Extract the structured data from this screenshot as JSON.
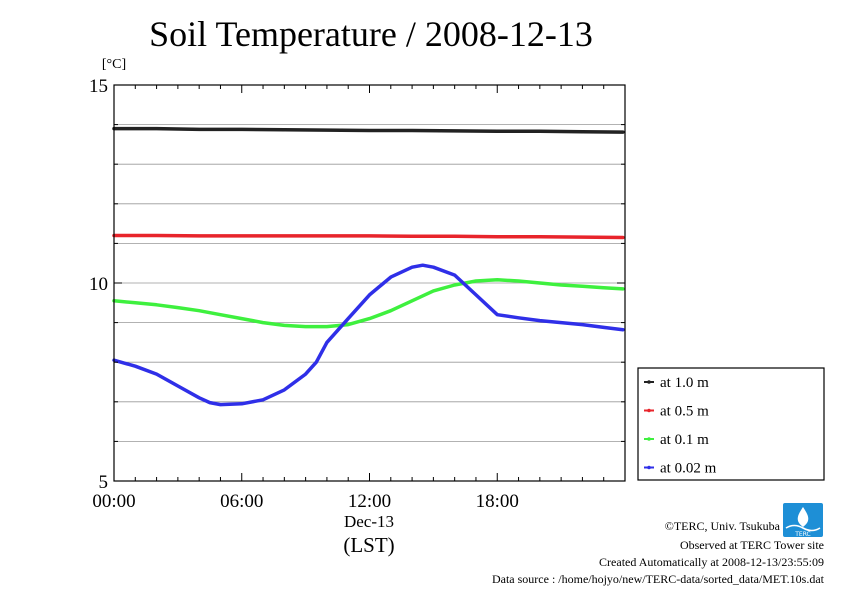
{
  "chart_data": {
    "type": "line",
    "title": "Soil Temperature / 2008-12-13",
    "ylabel": "[°C]",
    "ylim": [
      5,
      15
    ],
    "y_major_ticks": [
      5,
      10,
      15
    ],
    "y_minor_step": 1,
    "xlim": [
      0,
      24
    ],
    "x_ticks": [
      {
        "value": 0,
        "label": "00:00"
      },
      {
        "value": 6,
        "label": "06:00"
      },
      {
        "value": 12,
        "label": "12:00"
      },
      {
        "value": 18,
        "label": "18:00"
      }
    ],
    "x_sublabel": "Dec-13",
    "xlabel": "(LST)",
    "grid": true,
    "legend_position": "right",
    "series": [
      {
        "name": "at 1.0 m",
        "color": "#222222",
        "x": [
          0,
          2,
          4,
          6,
          8,
          10,
          12,
          14,
          16,
          18,
          20,
          22,
          23.9
        ],
        "y": [
          13.9,
          13.9,
          13.88,
          13.88,
          13.87,
          13.86,
          13.85,
          13.85,
          13.84,
          13.83,
          13.83,
          13.82,
          13.81
        ]
      },
      {
        "name": "at 0.5 m",
        "color": "#e8242b",
        "x": [
          0,
          2,
          4,
          6,
          8,
          10,
          12,
          14,
          16,
          18,
          20,
          22,
          23.9
        ],
        "y": [
          11.2,
          11.2,
          11.19,
          11.19,
          11.19,
          11.19,
          11.19,
          11.18,
          11.18,
          11.17,
          11.17,
          11.16,
          11.15
        ]
      },
      {
        "name": "at 0.1 m",
        "color": "#3ef03e",
        "x": [
          0,
          1,
          2,
          3,
          4,
          5,
          6,
          7,
          8,
          9,
          10,
          11,
          12,
          13,
          14,
          15,
          16,
          17,
          18,
          19,
          20,
          21,
          22,
          23,
          23.9
        ],
        "y": [
          9.55,
          9.5,
          9.45,
          9.38,
          9.3,
          9.2,
          9.1,
          9.0,
          8.93,
          8.9,
          8.9,
          8.95,
          9.1,
          9.3,
          9.55,
          9.8,
          9.95,
          10.05,
          10.08,
          10.05,
          10.0,
          9.95,
          9.92,
          9.88,
          9.85
        ]
      },
      {
        "name": "at 0.02 m",
        "color": "#2f2fe8",
        "x": [
          0,
          1,
          2,
          3,
          4,
          4.5,
          5,
          6,
          7,
          8,
          9,
          9.5,
          10,
          11,
          12,
          13,
          14,
          14.5,
          15,
          16,
          17,
          18,
          19,
          20,
          21,
          22,
          23,
          23.9
        ],
        "y": [
          8.05,
          7.9,
          7.7,
          7.4,
          7.1,
          6.98,
          6.93,
          6.95,
          7.05,
          7.3,
          7.7,
          8.0,
          8.5,
          9.1,
          9.7,
          10.15,
          10.4,
          10.45,
          10.4,
          10.2,
          9.7,
          9.2,
          9.12,
          9.05,
          9.0,
          8.95,
          8.88,
          8.82
        ]
      }
    ]
  },
  "footer": {
    "copyright": "©TERC, Univ. Tsukuba",
    "site": "Observed at TERC Tower site",
    "created": "Created Automatically at 2008-12-13/23:55:09",
    "source": "Data source : /home/hojyo/new/TERC-data/sorted_data/MET.10s.dat"
  },
  "logo": {
    "text": "TERC",
    "color": "#1e8fd6"
  }
}
